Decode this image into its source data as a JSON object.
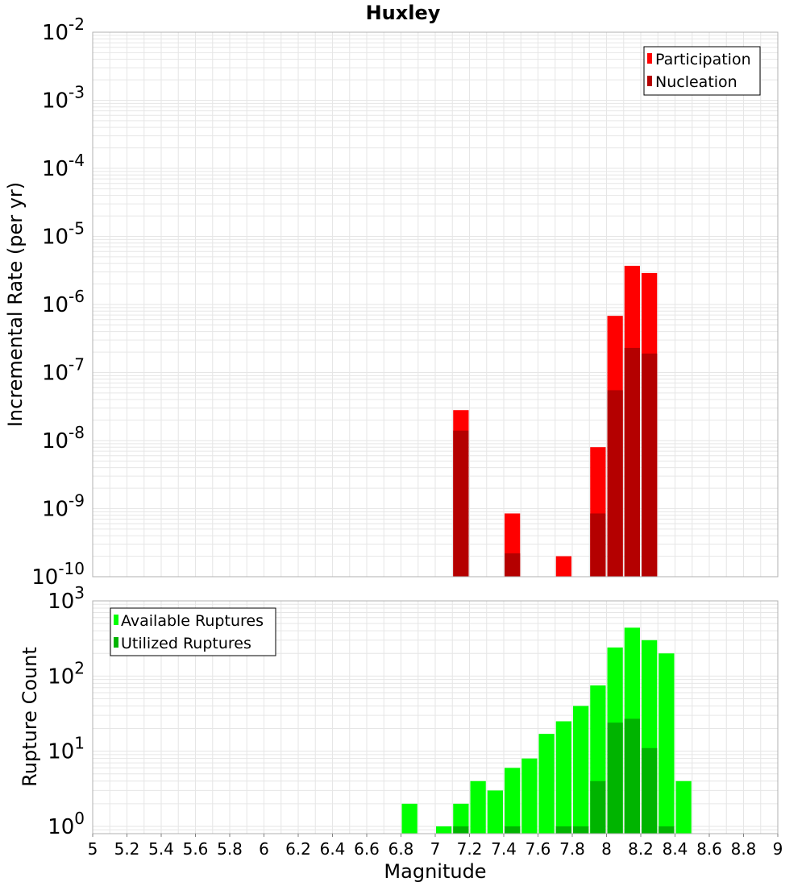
{
  "chart_data": [
    {
      "type": "bar",
      "title": "Huxley",
      "xlabel": "Magnitude",
      "ylabel": "Incremental Rate (per yr)",
      "yscale": "log",
      "ylim_exp": [
        -10,
        -2
      ],
      "xlim": [
        5,
        9
      ],
      "ytick_exponents": [
        "-2",
        "-3",
        "-4",
        "-5",
        "-6",
        "-7",
        "-8",
        "-9",
        "-10"
      ],
      "legend": {
        "placement": "top-right",
        "entries": [
          "Participation",
          "Nucleation"
        ]
      },
      "series": [
        {
          "name": "Participation",
          "color": "#ff0000",
          "x": [
            7.15,
            7.45,
            7.75,
            7.95,
            8.05,
            8.15,
            8.25
          ],
          "values": [
            2.8e-08,
            8.5e-10,
            2e-10,
            8e-09,
            6.8e-07,
            3.7e-06,
            2.9e-06
          ]
        },
        {
          "name": "Nucleation",
          "color": "#b40000",
          "x": [
            7.15,
            7.45,
            7.95,
            8.05,
            8.15,
            8.25
          ],
          "values": [
            1.4e-08,
            2.2e-10,
            8.5e-10,
            5.5e-08,
            2.3e-07,
            1.9e-07
          ]
        }
      ]
    },
    {
      "type": "bar",
      "title": "",
      "xlabel": "Magnitude",
      "ylabel": "Rupture Count",
      "yscale": "log",
      "ylim": [
        0.8,
        1000
      ],
      "ytick_exponents": [
        "3",
        "2",
        "1",
        "0"
      ],
      "legend": {
        "placement": "top-left",
        "entries": [
          "Available Ruptures",
          "Utilized Ruptures"
        ]
      },
      "series": [
        {
          "name": "Available Ruptures",
          "color": "#00ff00",
          "x": [
            6.85,
            7.05,
            7.15,
            7.25,
            7.35,
            7.45,
            7.55,
            7.65,
            7.75,
            7.85,
            7.95,
            8.05,
            8.15,
            8.25,
            8.35,
            8.45
          ],
          "values": [
            2,
            1,
            2,
            4,
            3,
            6,
            8,
            17,
            25,
            40,
            75,
            240,
            440,
            300,
            200,
            4
          ]
        },
        {
          "name": "Utilized Ruptures",
          "color": "#00b400",
          "x": [
            7.15,
            7.45,
            7.75,
            7.85,
            7.95,
            8.05,
            8.15,
            8.25,
            8.35
          ],
          "values": [
            1,
            1,
            1,
            1,
            4,
            24,
            27,
            11,
            1
          ]
        }
      ]
    }
  ],
  "x_ticks": [
    "5",
    "5.2",
    "5.4",
    "5.6",
    "5.8",
    "6",
    "6.2",
    "6.4",
    "6.6",
    "6.8",
    "7",
    "7.2",
    "7.4",
    "7.6",
    "7.8",
    "8",
    "8.2",
    "8.4",
    "8.6",
    "8.8",
    "9"
  ],
  "log_base": "10"
}
